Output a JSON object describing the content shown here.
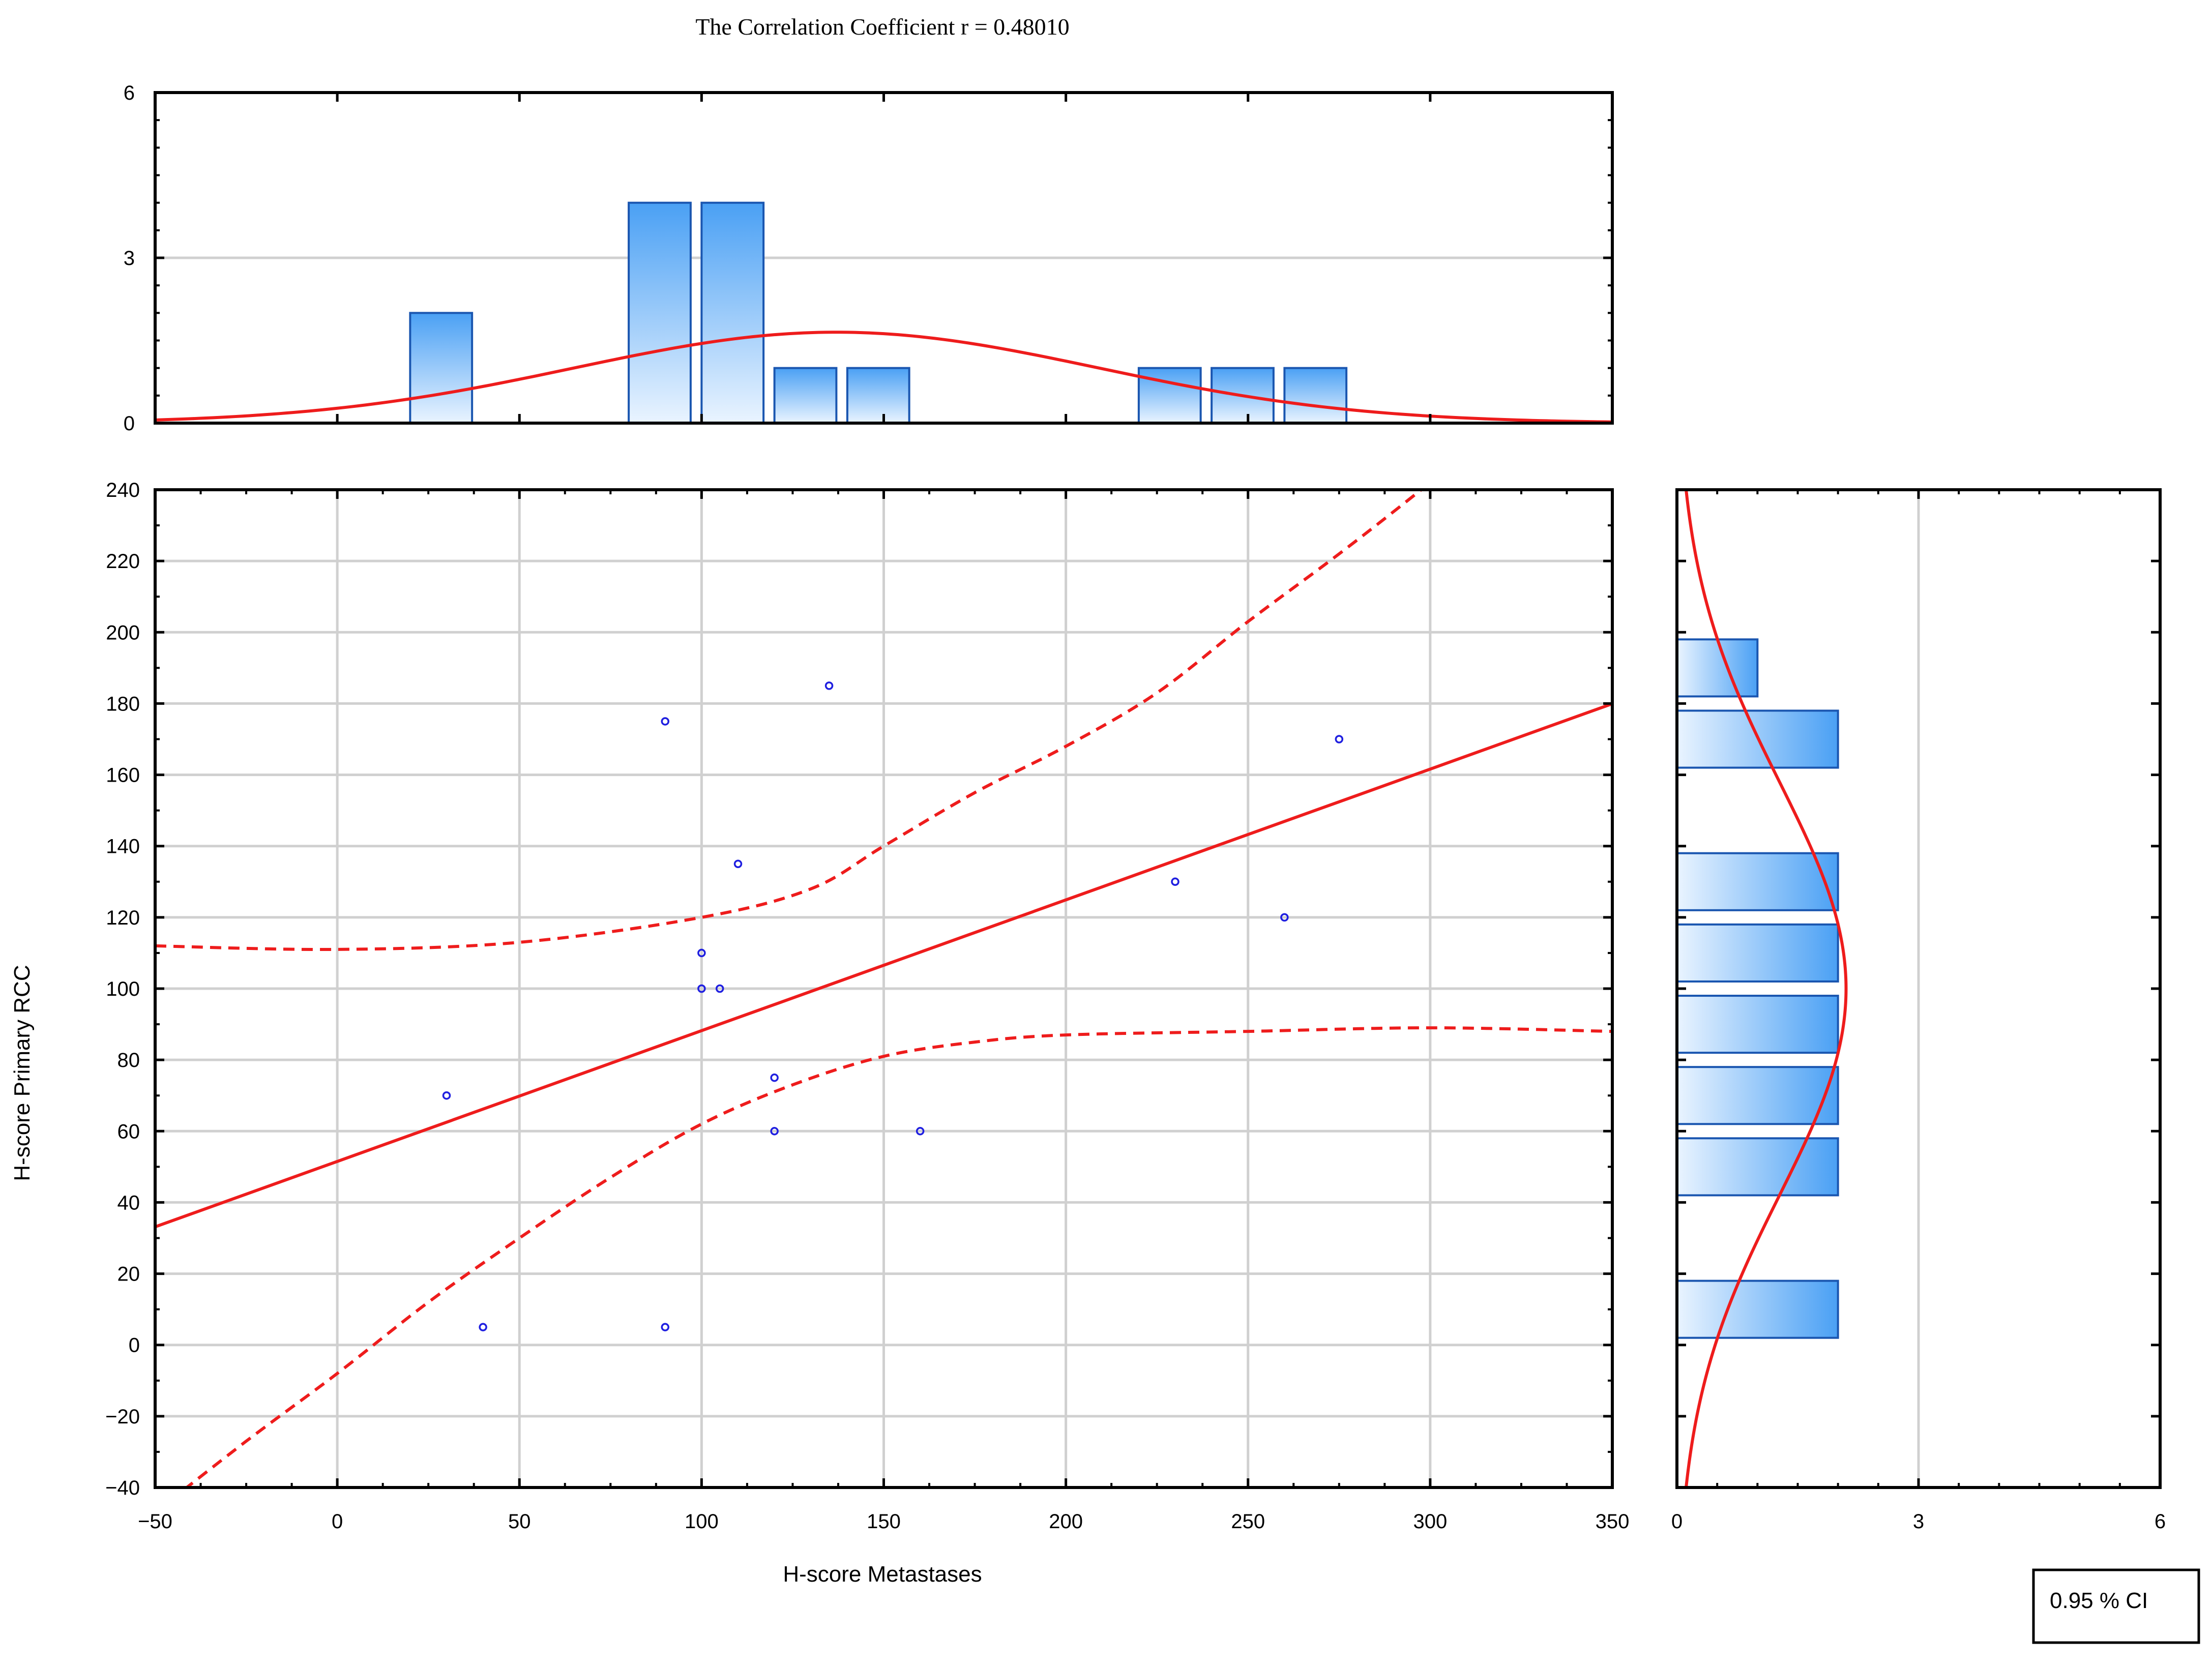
{
  "title": "The Correlation Coefficient  r = 0.48010",
  "legend_label": "0.95 % CI",
  "colors": {
    "fit_line": "#ee1c1c",
    "marker": "#1f1fe0",
    "bar_edge": "#1a56b0",
    "bar_fill_light": "#eaf4ff",
    "bar_fill_dark": "#4aa0f4",
    "grid": "#d0d0d0",
    "frame": "#000000"
  },
  "chart_data": [
    {
      "type": "scatter",
      "panel": "main",
      "xlabel": "H-score Metastases",
      "ylabel": "H-score Primary RCC",
      "xlim": [
        -50,
        350
      ],
      "ylim": [
        -40,
        240
      ],
      "xticks": [
        -50,
        0,
        50,
        100,
        150,
        200,
        250,
        300,
        350
      ],
      "yticks": [
        -40,
        -20,
        0,
        20,
        40,
        60,
        80,
        100,
        120,
        140,
        160,
        180,
        200,
        220,
        240
      ],
      "grid": true,
      "points": [
        {
          "x": 30,
          "y": 70
        },
        {
          "x": 40,
          "y": 5
        },
        {
          "x": 90,
          "y": 175
        },
        {
          "x": 90,
          "y": 5
        },
        {
          "x": 100,
          "y": 110
        },
        {
          "x": 100,
          "y": 100
        },
        {
          "x": 105,
          "y": 100
        },
        {
          "x": 110,
          "y": 135
        },
        {
          "x": 120,
          "y": 75
        },
        {
          "x": 120,
          "y": 60
        },
        {
          "x": 135,
          "y": 185
        },
        {
          "x": 160,
          "y": 60
        },
        {
          "x": 230,
          "y": 130
        },
        {
          "x": 260,
          "y": 120
        },
        {
          "x": 275,
          "y": 170
        }
      ],
      "regression_line": {
        "intercept": 51.5,
        "slope": 0.367
      },
      "ci_upper": [
        [
          -50,
          112
        ],
        [
          0,
          111
        ],
        [
          50,
          113
        ],
        [
          100,
          120
        ],
        [
          130,
          128
        ],
        [
          150,
          140
        ],
        [
          175,
          155
        ],
        [
          200,
          168
        ],
        [
          225,
          183
        ],
        [
          250,
          203
        ],
        [
          275,
          222
        ],
        [
          300,
          242
        ],
        [
          350,
          283
        ]
      ],
      "ci_lower": [
        [
          -50,
          -47
        ],
        [
          -25,
          -27
        ],
        [
          0,
          -8
        ],
        [
          25,
          12
        ],
        [
          50,
          30
        ],
        [
          75,
          47
        ],
        [
          100,
          62
        ],
        [
          125,
          73
        ],
        [
          150,
          81
        ],
        [
          175,
          85
        ],
        [
          200,
          87
        ],
        [
          250,
          88
        ],
        [
          300,
          89
        ],
        [
          350,
          88
        ]
      ],
      "legend_placement": "bottom-right"
    },
    {
      "type": "bar",
      "panel": "top-histogram",
      "xlim": [
        -50,
        350
      ],
      "ylim": [
        0,
        6
      ],
      "yticks": [
        0,
        3,
        6
      ],
      "bins": [
        {
          "x0": 20,
          "x1": 37,
          "count": 2
        },
        {
          "x0": 80,
          "x1": 97,
          "count": 4
        },
        {
          "x0": 100,
          "x1": 117,
          "count": 4
        },
        {
          "x0": 120,
          "x1": 137,
          "count": 1
        },
        {
          "x0": 140,
          "x1": 157,
          "count": 1
        },
        {
          "x0": 220,
          "x1": 237,
          "count": 1
        },
        {
          "x0": 240,
          "x1": 257,
          "count": 1
        },
        {
          "x0": 260,
          "x1": 277,
          "count": 1
        }
      ],
      "normal_fit": {
        "mean": 137,
        "sd": 72,
        "peak": 1.65
      }
    },
    {
      "type": "bar",
      "panel": "right-histogram",
      "orientation": "horizontal",
      "xlim": [
        0,
        6
      ],
      "xticks": [
        0,
        3,
        6
      ],
      "ylim": [
        -40,
        240
      ],
      "bins": [
        {
          "y0": 2,
          "y1": 18,
          "count": 2
        },
        {
          "y0": 42,
          "y1": 58,
          "count": 2
        },
        {
          "y0": 62,
          "y1": 78,
          "count": 2
        },
        {
          "y0": 82,
          "y1": 98,
          "count": 2
        },
        {
          "y0": 102,
          "y1": 118,
          "count": 2
        },
        {
          "y0": 122,
          "y1": 138,
          "count": 2
        },
        {
          "y0": 162,
          "y1": 178,
          "count": 2
        },
        {
          "y0": 182,
          "y1": 198,
          "count": 1
        }
      ],
      "normal_fit": {
        "mean": 100,
        "sd": 58,
        "peak": 2.1
      }
    }
  ]
}
